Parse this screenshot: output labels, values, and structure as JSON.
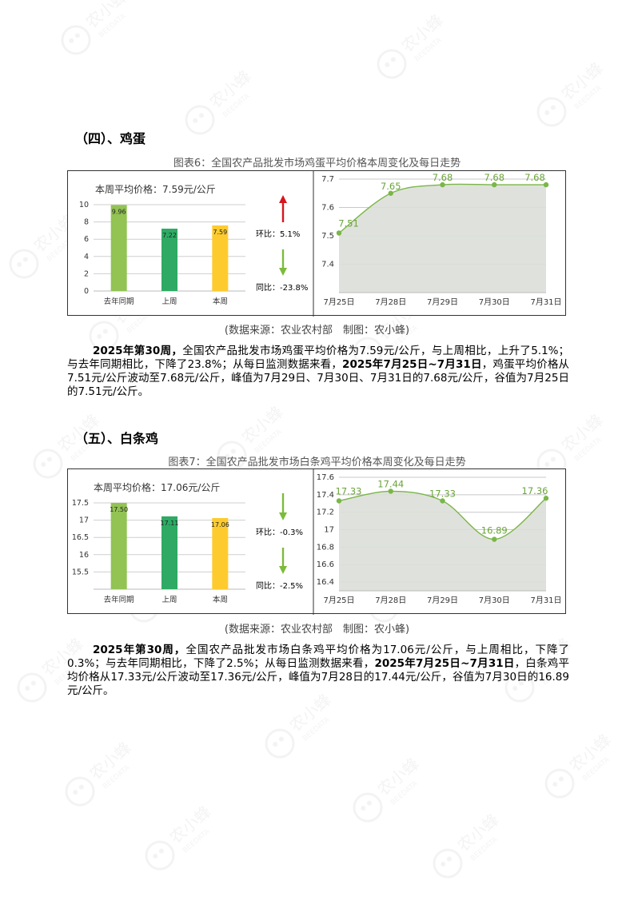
{
  "watermark": {
    "cn": "农小蜂",
    "en": "BEEDATA"
  },
  "sections": [
    {
      "heading": "（四）、鸡蛋",
      "caption": "图表6：全国农产品批发市场鸡蛋平均价格本周变化及每日走势",
      "summary_label": "本周平均价格：7.59元/公斤",
      "mom_label": "环比：5.1%",
      "yoy_label": "同比：-23.8%",
      "source": "(数据来源：农业农村部　制图：农小蜂)",
      "paragraph": {
        "p1": "2025年第30周，",
        "p2": "全国农产品批发市场鸡蛋平均价格为7.59元/公斤，与上周相比，上升了5.1%；与去年同期相比，下降了23.8%；从每日监测数据来看，",
        "p3": "2025年7月25日~7月31日",
        "p4": "，鸡蛋平均价格从7.51元/公斤波动至7.68元/公斤，峰值为7月29日、7月30日、7月31日的7.68元/公斤，谷值为7月25日的7.51元/公斤。"
      }
    },
    {
      "heading": "（五）、白条鸡",
      "caption": "图表7：全国农产品批发市场白条鸡平均价格本周变化及每日走势",
      "summary_label": "本周平均价格：17.06元/公斤",
      "mom_label": "环比：-0.3%",
      "yoy_label": "同比：-2.5%",
      "source": "(数据来源：农业农村部　制图：农小蜂)",
      "paragraph": {
        "p1": "2025年第30周，",
        "p2": "全国农产品批发市场白条鸡平均价格为17.06元/公斤，与上周相比，下降了0.3%；与去年同期相比，下降了2.5%；从每日监测数据来看，",
        "p3": "2025年7月25日~7月31日",
        "p4": "，白条鸡平均价格从17.33元/公斤波动至17.36元/公斤，峰值为7月28日的17.44元/公斤，谷值为7月30日的16.89元/公斤。"
      }
    }
  ],
  "chart_data": [
    {
      "type": "bar",
      "categories": [
        "去年同期",
        "上周",
        "本周"
      ],
      "values": [
        9.96,
        7.22,
        7.59
      ],
      "data_labels": [
        "9.96",
        "7.22",
        "7.59"
      ],
      "ylim": [
        0,
        10
      ],
      "yticks": [
        "0",
        "2",
        "4",
        "6",
        "8",
        "10"
      ],
      "ytick_values": [
        0,
        2,
        4,
        6,
        8,
        10
      ],
      "colors": [
        "#92c353",
        "#2eaa64",
        "#fecb2f"
      ],
      "mom_direction": "up",
      "yoy_direction": "down",
      "grid": true
    },
    {
      "type": "area",
      "x": [
        "7月25日",
        "7月28日",
        "7月29日",
        "7月30日",
        "7月31日"
      ],
      "values": [
        7.51,
        7.65,
        7.68,
        7.68,
        7.68
      ],
      "data_labels": [
        "7.51",
        "7.65",
        "7.68",
        "7.68",
        "7.68"
      ],
      "ylim": [
        7.3,
        7.7
      ],
      "yticks": [
        "7.4",
        "7.5",
        "7.6",
        "7.7"
      ],
      "ytick_values": [
        7.4,
        7.5,
        7.6,
        7.7
      ],
      "line_color": "#7ab648",
      "fill_color": "#dcdfd8",
      "grid": true
    },
    {
      "type": "bar",
      "categories": [
        "去年同期",
        "上周",
        "本周"
      ],
      "values": [
        17.5,
        17.11,
        17.06
      ],
      "data_labels": [
        "17.50",
        "17.11",
        "17.06"
      ],
      "ylim": [
        15,
        17.5
      ],
      "yticks": [
        "15.5",
        "16",
        "16.5",
        "17",
        "17.5"
      ],
      "ytick_values": [
        15.5,
        16,
        16.5,
        17,
        17.5
      ],
      "colors": [
        "#92c353",
        "#2eaa64",
        "#fecb2f"
      ],
      "mom_direction": "down",
      "yoy_direction": "down",
      "grid": true
    },
    {
      "type": "area",
      "x": [
        "7月25日",
        "7月28日",
        "7月29日",
        "7月30日",
        "7月31日"
      ],
      "values": [
        17.33,
        17.44,
        17.33,
        16.89,
        17.36
      ],
      "data_labels": [
        "17.33",
        "17.44",
        "17.33",
        "16.89",
        "17.36"
      ],
      "ylim": [
        16.3,
        17.6
      ],
      "yticks": [
        "16.4",
        "16.6",
        "16.8",
        "17",
        "17.2",
        "17.4",
        "17.6"
      ],
      "ytick_values": [
        16.4,
        16.6,
        16.8,
        17,
        17.2,
        17.4,
        17.6
      ],
      "line_color": "#7ab648",
      "fill_color": "#dcdfd8",
      "grid": true
    }
  ]
}
